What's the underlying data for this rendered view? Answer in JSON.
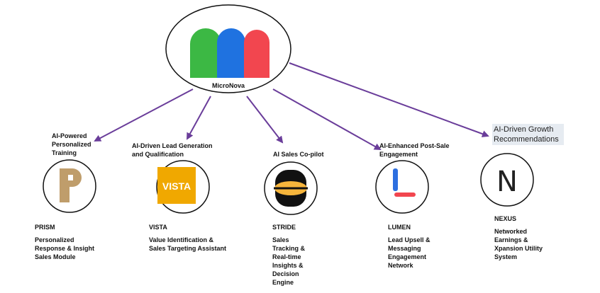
{
  "hub": {
    "name": "MicroNova"
  },
  "colors": {
    "arrow": "#6a3d9a",
    "green": "#3cb844",
    "blue": "#1f72e0",
    "red": "#f2464f",
    "prism": "#bf9d6b",
    "vista": "#f0a800",
    "stride_dark": "#111111",
    "stride_orange": "#f6b53c",
    "lumen_blue": "#2d6fe0",
    "lumen_red": "#f2464f"
  },
  "nodes": [
    {
      "id": "prism",
      "category": "AI-Powered Personalized Training",
      "logo": "P",
      "icon": "prism-logo",
      "name": "PRISM",
      "description": "Personalized Response & Insight Sales Module"
    },
    {
      "id": "vista",
      "category": "AI-Driven Lead Generation and Qualification",
      "logo": "VISTA",
      "icon": "vista-logo",
      "name": "VISTA",
      "description": "Value Identification & Sales Targeting Assistant"
    },
    {
      "id": "stride",
      "category": "AI Sales Co-pilot",
      "icon": "stride-logo",
      "name": "STRIDE",
      "description": "Sales Tracking & Real-time Insights & Decision Engine"
    },
    {
      "id": "lumen",
      "category": "AI-Enhanced Post-Sale Engagement",
      "icon": "lumen-logo",
      "name": "LUMEN",
      "description": "Lead Upsell & Messaging Engagement Network"
    },
    {
      "id": "nexus",
      "category": "AI-Driven Growth Recommendations",
      "logo": "N",
      "icon": "nexus-logo",
      "name": "NEXUS",
      "description": "Networked Earnings & Xpansion Utility System"
    }
  ]
}
